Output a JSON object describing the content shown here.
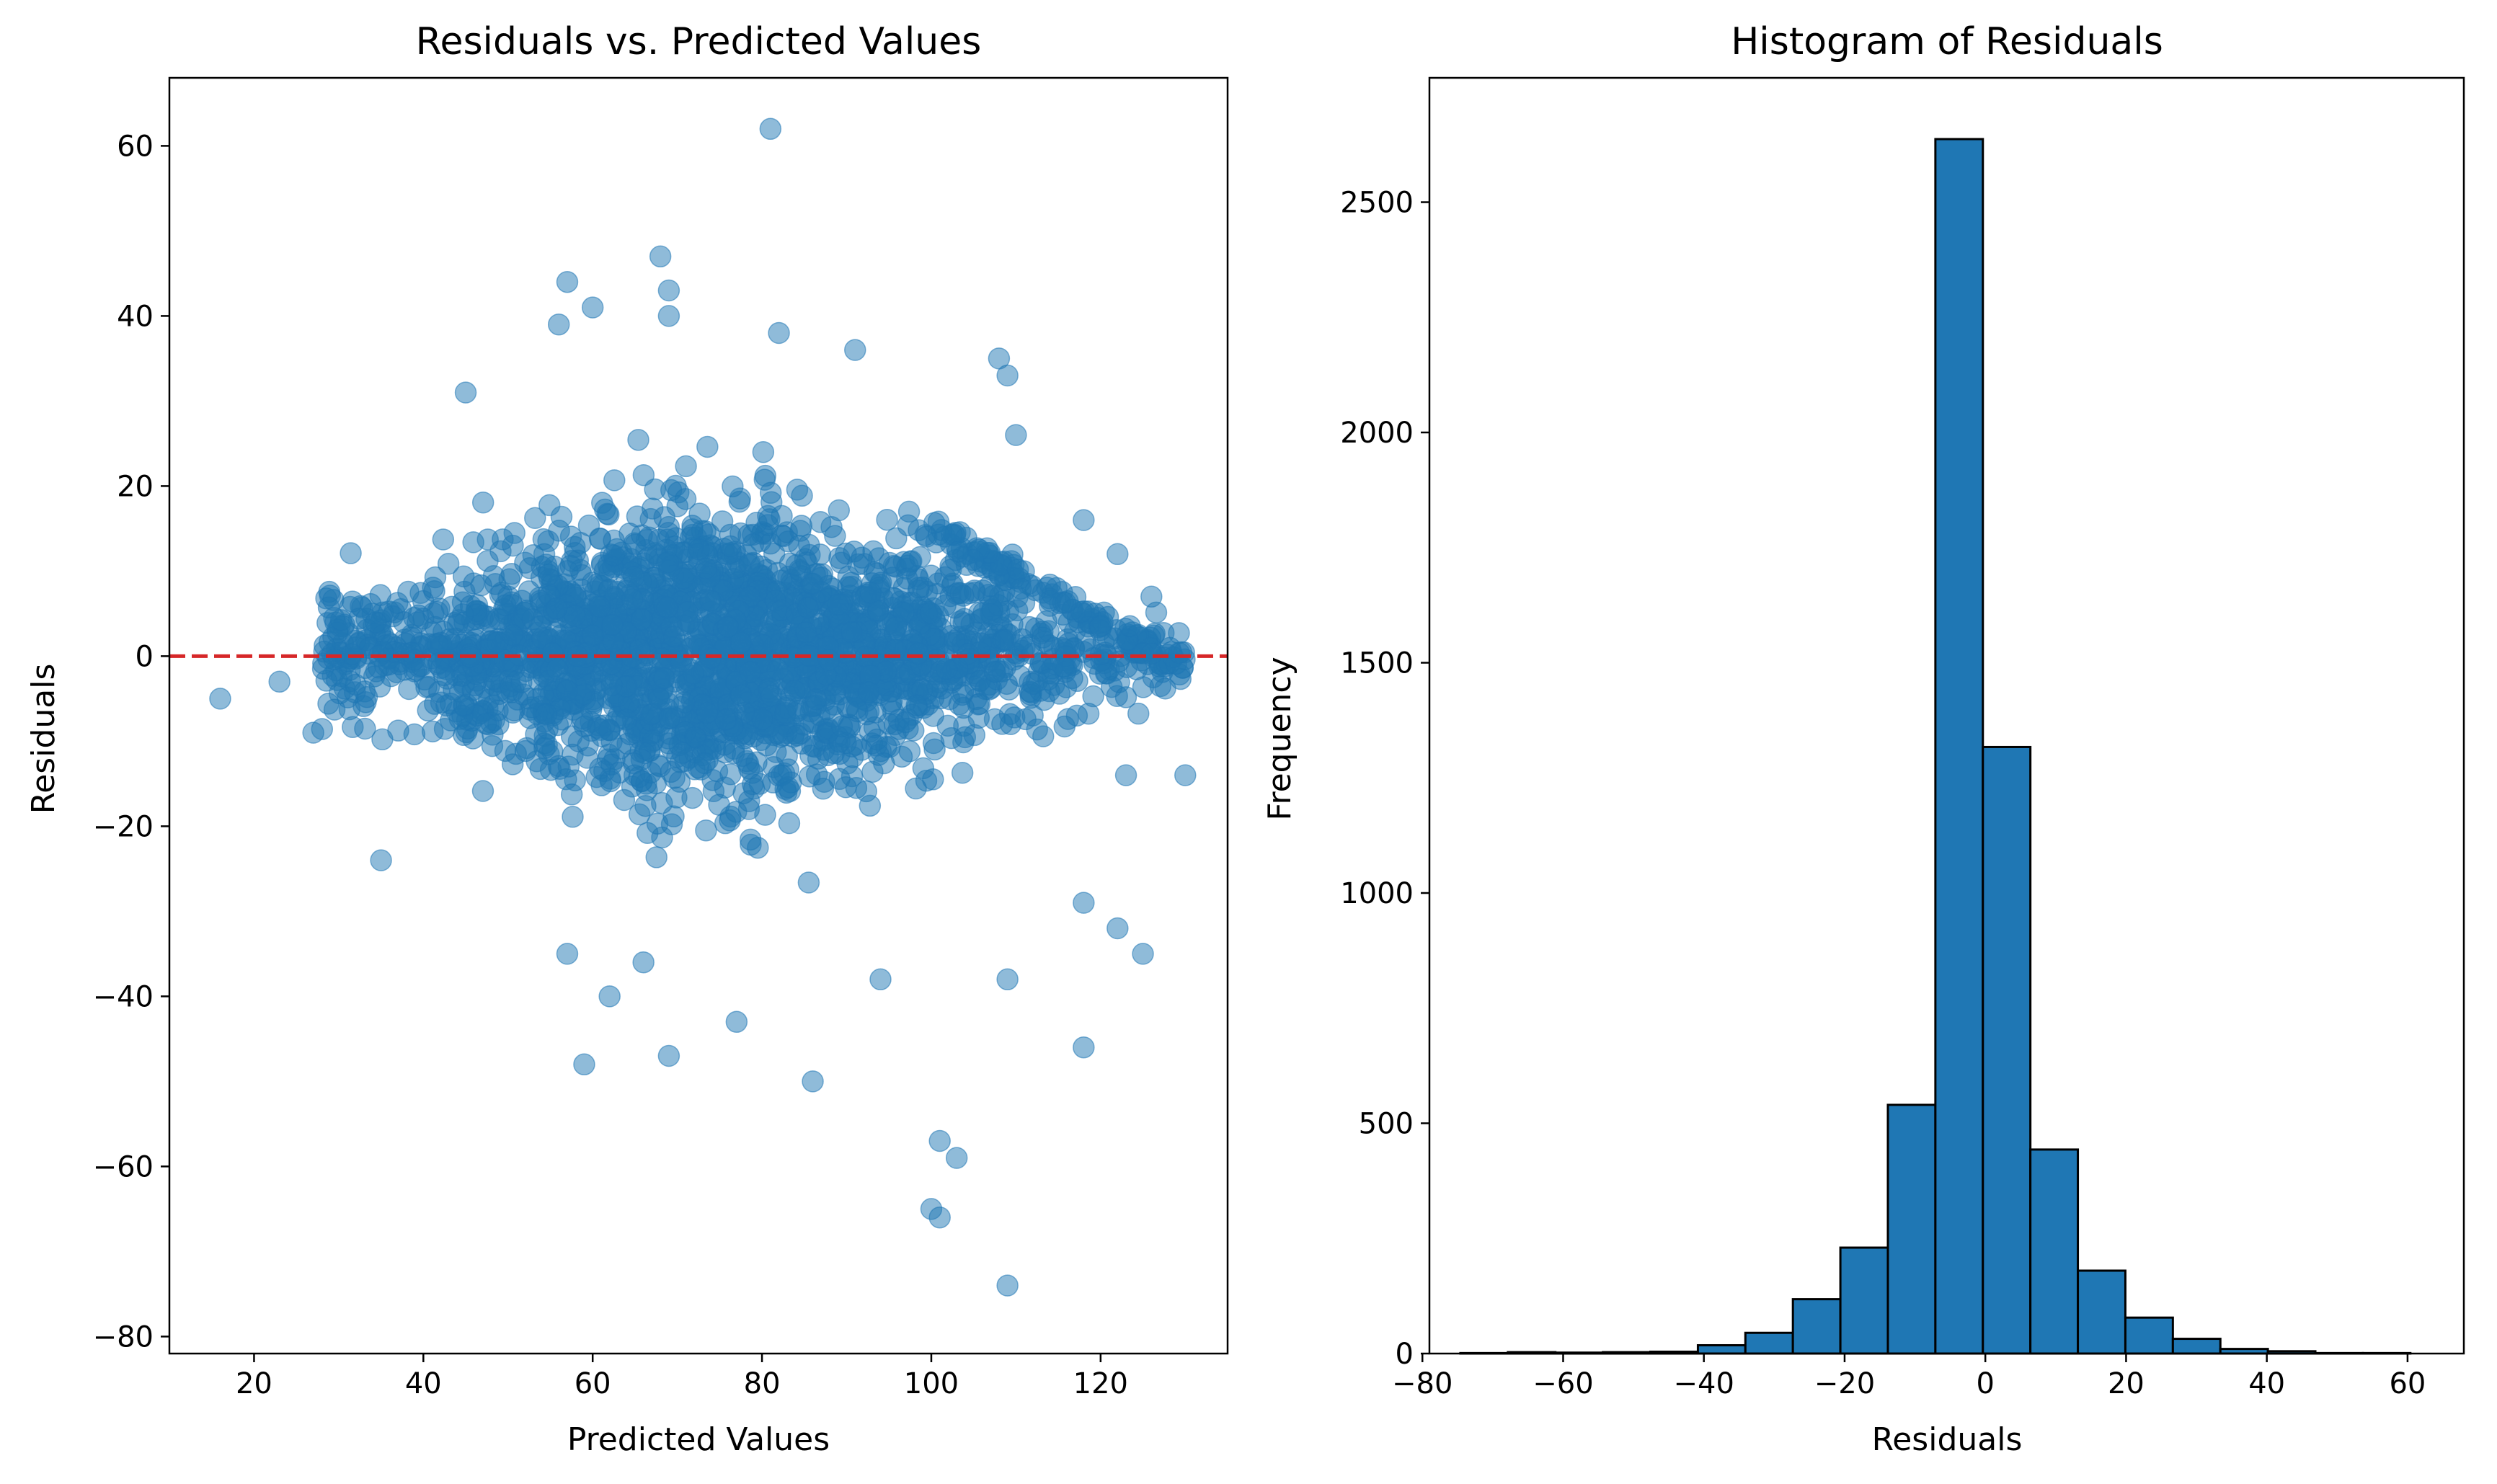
{
  "chart_data": [
    {
      "type": "scatter",
      "title": "Residuals vs. Predicted Values",
      "xlabel": "Predicted Values",
      "ylabel": "Residuals",
      "xlim": [
        10,
        135
      ],
      "ylim": [
        -82,
        68
      ],
      "xticks": [
        20,
        40,
        60,
        80,
        100,
        120
      ],
      "yticks": [
        -80,
        -60,
        -40,
        -20,
        0,
        20,
        40,
        60
      ],
      "grid": false,
      "marker_color": "#1f77b4",
      "marker_alpha": 0.5,
      "reference_line": {
        "y": 0,
        "color": "#d62728",
        "style": "dashed"
      },
      "notable_points": [
        {
          "x": 16,
          "y": -5
        },
        {
          "x": 81,
          "y": 62
        },
        {
          "x": 68,
          "y": 47
        },
        {
          "x": 57,
          "y": 44
        },
        {
          "x": 69,
          "y": 43
        },
        {
          "x": 69,
          "y": 40
        },
        {
          "x": 60,
          "y": 41
        },
        {
          "x": 56,
          "y": 39
        },
        {
          "x": 82,
          "y": 38
        },
        {
          "x": 91,
          "y": 36
        },
        {
          "x": 108,
          "y": 35
        },
        {
          "x": 109,
          "y": 33
        },
        {
          "x": 45,
          "y": 31
        },
        {
          "x": 110,
          "y": 26
        },
        {
          "x": 118,
          "y": 16
        },
        {
          "x": 122,
          "y": 12
        },
        {
          "x": 126,
          "y": 7
        },
        {
          "x": 130,
          "y": -14
        },
        {
          "x": 123,
          "y": -14
        },
        {
          "x": 118,
          "y": -29
        },
        {
          "x": 122,
          "y": -32
        },
        {
          "x": 125,
          "y": -35
        },
        {
          "x": 118,
          "y": -46
        },
        {
          "x": 35,
          "y": -24
        },
        {
          "x": 59,
          "y": -48
        },
        {
          "x": 69,
          "y": -47
        },
        {
          "x": 77,
          "y": -43
        },
        {
          "x": 62,
          "y": -40
        },
        {
          "x": 86,
          "y": -50
        },
        {
          "x": 101,
          "y": -57
        },
        {
          "x": 103,
          "y": -59
        },
        {
          "x": 100,
          "y": -65
        },
        {
          "x": 101,
          "y": -66
        },
        {
          "x": 109,
          "y": -74
        },
        {
          "x": 109,
          "y": -38
        },
        {
          "x": 94,
          "y": -38
        },
        {
          "x": 57,
          "y": -35
        },
        {
          "x": 66,
          "y": -36
        },
        {
          "x": 23,
          "y": -3
        },
        {
          "x": 27,
          "y": -9
        }
      ],
      "bulk_note_series": [
        {
          "x_range": [
            28,
            130
          ],
          "density": "dense",
          "spread_sd": 9
        }
      ]
    },
    {
      "type": "bar",
      "title": "Histogram of Residuals",
      "xlabel": "Residuals",
      "ylabel": "Frequency",
      "xlim": [
        -79,
        68
      ],
      "ylim": [
        0,
        2770
      ],
      "xticks": [
        -80,
        -60,
        -40,
        -20,
        0,
        20,
        40,
        60
      ],
      "yticks": [
        0,
        500,
        1000,
        1500,
        2000,
        2500
      ],
      "grid": false,
      "bar_color": "#1f77b4",
      "edge_color": "#000000",
      "bin_width": 6.75,
      "bins": [
        {
          "x0": -74.6,
          "count": 1
        },
        {
          "x0": -67.85,
          "count": 3
        },
        {
          "x0": -61.1,
          "count": 2
        },
        {
          "x0": -54.35,
          "count": 3
        },
        {
          "x0": -47.6,
          "count": 4
        },
        {
          "x0": -40.85,
          "count": 18
        },
        {
          "x0": -34.1,
          "count": 45
        },
        {
          "x0": -27.35,
          "count": 118
        },
        {
          "x0": -20.6,
          "count": 230
        },
        {
          "x0": -13.85,
          "count": 540
        },
        {
          "x0": -7.1,
          "count": 2637
        },
        {
          "x0": -0.35,
          "count": 1317
        },
        {
          "x0": 6.4,
          "count": 443
        },
        {
          "x0": 13.15,
          "count": 180
        },
        {
          "x0": 19.9,
          "count": 78
        },
        {
          "x0": 26.65,
          "count": 32
        },
        {
          "x0": 33.4,
          "count": 10
        },
        {
          "x0": 40.15,
          "count": 5
        },
        {
          "x0": 46.9,
          "count": 1
        },
        {
          "x0": 53.65,
          "count": 1
        }
      ]
    }
  ]
}
